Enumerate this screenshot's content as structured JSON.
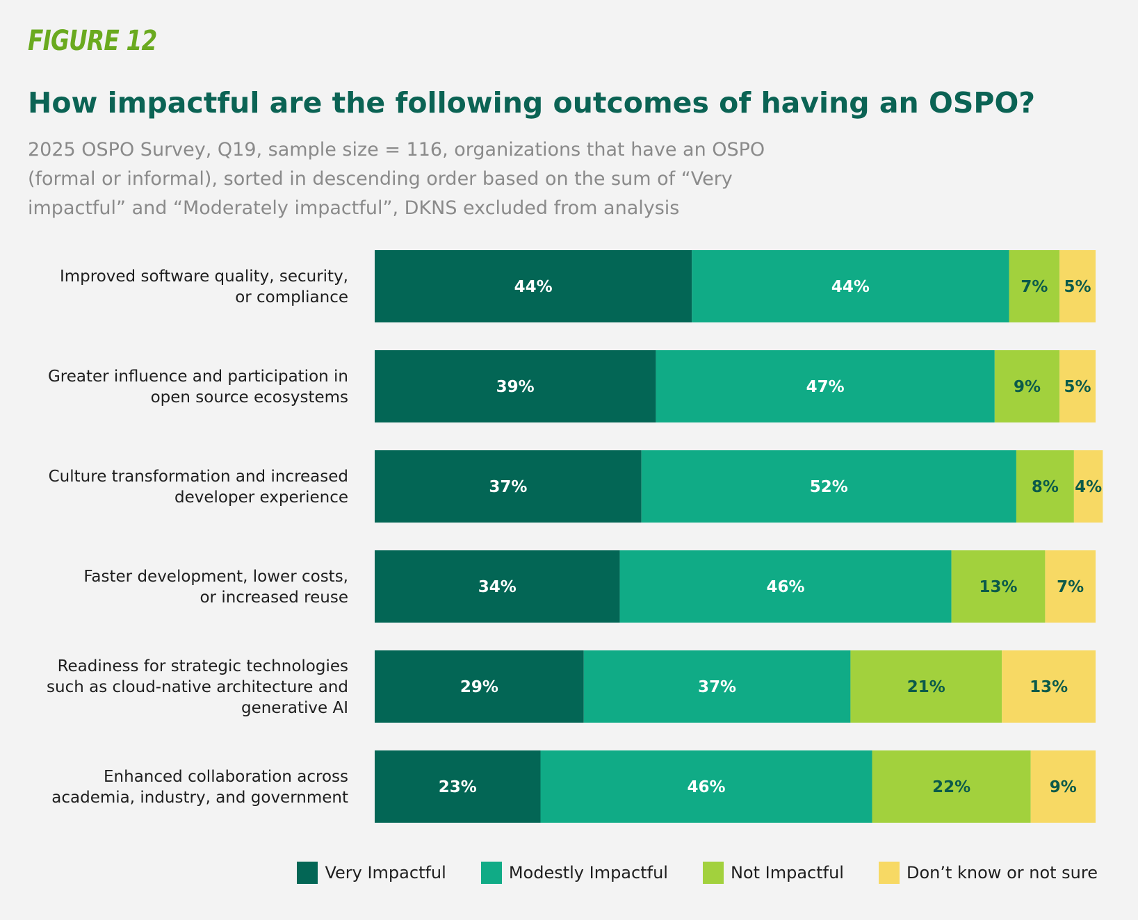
{
  "figure_label": "FIGURE 12",
  "title": "How impactful are the following outcomes of having an OSPO?",
  "subtitle": "2025 OSPO Survey, Q19, sample size = 116, organizations that have an OSPO (formal or informal), sorted in descending order based on the sum of “Very impactful” and “Moderately impactful”, DKNS excluded from analysis",
  "chart_data": {
    "type": "bar",
    "orientation": "horizontal",
    "stacked": true,
    "categories": [
      [
        "Improved software quality, security,",
        "or compliance"
      ],
      [
        "Greater influence and participation in",
        "open source ecosystems"
      ],
      [
        "Culture transformation and increased",
        "developer experience"
      ],
      [
        "Faster development, lower costs,",
        "or increased reuse"
      ],
      [
        "Readiness for strategic technologies",
        "such as cloud-native architecture and",
        "generative AI"
      ],
      [
        "Enhanced collaboration across",
        "academia, industry, and government"
      ]
    ],
    "series": [
      {
        "name": "Very Impactful",
        "color": "#036655",
        "label_color": "#ffffff",
        "values": [
          44,
          39,
          37,
          34,
          29,
          23
        ],
        "labels": [
          "44%",
          "39%",
          "37%",
          "34%",
          "29%",
          "23%"
        ]
      },
      {
        "name": "Modestly Impactful",
        "color": "#10ab86",
        "label_color": "#ffffff",
        "values": [
          44,
          47,
          52,
          46,
          37,
          46
        ],
        "labels": [
          "44%",
          "47%",
          "52%",
          "46%",
          "37%",
          "46%"
        ]
      },
      {
        "name": "Not Impactful",
        "color": "#a2d13d",
        "label_color": "#0b5a4a",
        "values": [
          7,
          9,
          8,
          13,
          21,
          22
        ],
        "labels": [
          "7%",
          "9%",
          "8%",
          "13%",
          "21%",
          "22%"
        ]
      },
      {
        "name": "Don’t know or not sure",
        "color": "#f7d964",
        "label_color": "#0b5a4a",
        "values": [
          5,
          5,
          4,
          7,
          13,
          9
        ],
        "labels": [
          "5%",
          "5%",
          "4%",
          "7%",
          "13%",
          "9%"
        ]
      }
    ],
    "xlim": [
      0,
      100
    ],
    "legend_position": "bottom-right",
    "grid": false
  }
}
